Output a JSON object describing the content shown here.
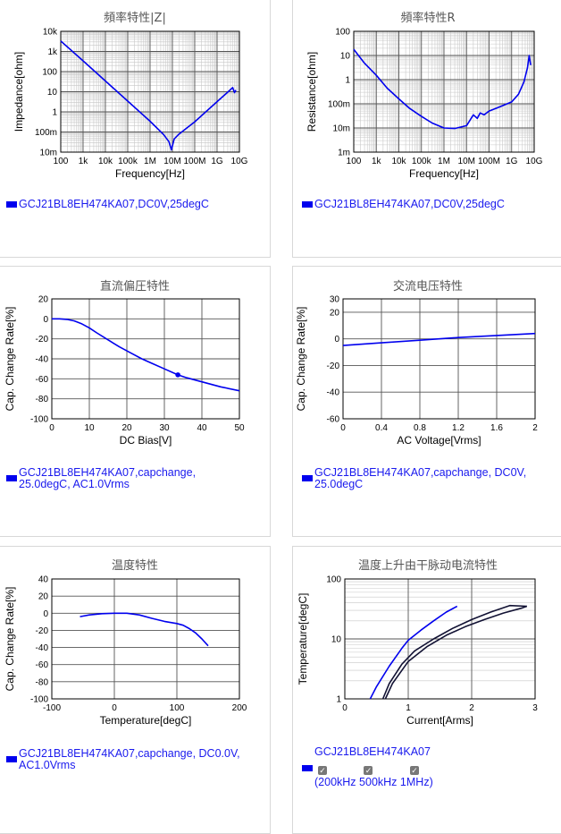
{
  "panels": [
    {
      "title": "頻率特性|Z|",
      "legend": [
        "GCJ21BL8EH474KA07,DC0V,25degC"
      ]
    },
    {
      "title": "頻率特性R",
      "legend": [
        "GCJ21BL8EH474KA07,DC0V,25degC"
      ]
    },
    {
      "title": "直流偏圧特性",
      "legend": [
        "GCJ21BL8EH474KA07,capchange,",
        "25.0degC, AC1.0Vrms"
      ]
    },
    {
      "title": "交流电压特性",
      "legend": [
        "GCJ21BL8EH474KA07,capchange, DC0V,",
        "25.0degC"
      ]
    },
    {
      "title": "温度特性",
      "legend": [
        "GCJ21BL8EH474KA07,capchange, DC0.0V,",
        "AC1.0Vrms"
      ]
    },
    {
      "title": "温度上升由干脉动电流特性",
      "legend": [
        "GCJ21BL8EH474KA07"
      ],
      "legend_options": [
        "200kHz",
        "500kHz",
        "1MHz"
      ],
      "legend_open": "(",
      "legend_close": ")"
    }
  ],
  "chart_data": [
    {
      "type": "line",
      "scale": "log-log",
      "title": "頻率特性|Z|",
      "xlabel": "Frequency[Hz]",
      "ylabel": "Impedance[ohm]",
      "xlim": [
        100,
        10000000000
      ],
      "ylim": [
        0.01,
        10000
      ],
      "xticks": [
        "100",
        "1k",
        "10k",
        "100k",
        "1M",
        "10M",
        "100M",
        "1G",
        "10G"
      ],
      "yticks": [
        "10m",
        "100m",
        "1",
        "10",
        "100",
        "1k",
        "10k"
      ],
      "grid": true,
      "series": [
        {
          "color": "#0000ee",
          "x": [
            100,
            1000,
            10000,
            100000,
            1000000,
            4000000,
            7000000,
            9000000,
            12000000,
            20000000,
            100000000,
            1000000000,
            3000000000,
            5000000000,
            6000000000,
            7000000000
          ],
          "y": [
            3300,
            340,
            34,
            3.4,
            0.34,
            0.075,
            0.033,
            0.013,
            0.045,
            0.08,
            0.32,
            3.2,
            9.5,
            16,
            9,
            12
          ]
        }
      ]
    },
    {
      "type": "line",
      "scale": "log-log",
      "title": "頻率特性R",
      "xlabel": "Frequency[Hz]",
      "ylabel": "Resistance[ohm]",
      "xlim": [
        100,
        10000000000
      ],
      "ylim": [
        0.001,
        100
      ],
      "xticks": [
        "100",
        "1k",
        "10k",
        "100k",
        "1M",
        "10M",
        "100M",
        "1G",
        "10G"
      ],
      "yticks": [
        "1m",
        "10m",
        "100m",
        "1",
        "10",
        "100"
      ],
      "grid": true,
      "series": [
        {
          "color": "#0000ee",
          "x": [
            100,
            300,
            1000,
            3000,
            10000,
            30000,
            100000,
            300000,
            1000000,
            3000000,
            10000000,
            20000000,
            30000000,
            40000000,
            60000000,
            100000000,
            300000000,
            1000000000,
            2000000000,
            3500000000,
            5000000000,
            6000000000,
            7000000000
          ],
          "y": [
            18,
            4.8,
            1.5,
            0.45,
            0.16,
            0.065,
            0.03,
            0.016,
            0.01,
            0.0095,
            0.0125,
            0.035,
            0.025,
            0.042,
            0.035,
            0.05,
            0.075,
            0.12,
            0.25,
            0.8,
            3,
            10,
            4
          ]
        }
      ]
    },
    {
      "type": "line",
      "title": "直流偏圧特性",
      "xlabel": "DC Bias[V]",
      "ylabel": "Cap. Change Rate[%]",
      "xlim": [
        0,
        50
      ],
      "ylim": [
        -100,
        20
      ],
      "xticks": [
        0,
        10,
        20,
        30,
        40,
        50
      ],
      "yticks": [
        20,
        0,
        -20,
        -40,
        -60,
        -80,
        -100
      ],
      "grid": true,
      "series": [
        {
          "color": "#0000ee",
          "x": [
            0,
            2,
            4,
            6,
            8,
            10,
            12,
            15,
            18,
            21,
            24,
            27,
            30,
            33.6,
            36,
            40,
            45,
            50
          ],
          "y": [
            0,
            0,
            -0.5,
            -2,
            -5,
            -9,
            -14,
            -21,
            -28,
            -34,
            -40,
            -45,
            -50,
            -56,
            -59,
            -63,
            -68,
            -72
          ]
        }
      ],
      "marker": {
        "x": 33.6,
        "y": -56
      }
    },
    {
      "type": "line",
      "title": "交流电压特性",
      "xlabel": "AC Voltage[Vrms]",
      "ylabel": "Cap. Change Rate[%]",
      "xlim": [
        0,
        2
      ],
      "ylim": [
        -60,
        30
      ],
      "xticks": [
        "0",
        "0.4",
        "0.8",
        "1.2",
        "1.6",
        "2"
      ],
      "yticks": [
        30,
        20,
        0,
        -20,
        -40,
        -60
      ],
      "grid": true,
      "series": [
        {
          "color": "#0000ee",
          "x": [
            0,
            0.4,
            0.8,
            1.2,
            1.6,
            2.0
          ],
          "y": [
            -5,
            -3,
            -1,
            1,
            2.5,
            4
          ]
        }
      ]
    },
    {
      "type": "line",
      "title": "温度特性",
      "xlabel": "Temperature[degC]",
      "ylabel": "Cap. Change Rate[%]",
      "xlim": [
        -100,
        200
      ],
      "ylim": [
        -100,
        40
      ],
      "xticks": [
        -100,
        0,
        100,
        200
      ],
      "yticks": [
        40,
        20,
        0,
        -20,
        -40,
        -60,
        -80,
        -100
      ],
      "grid": true,
      "series": [
        {
          "color": "#0000ee",
          "x": [
            -55,
            -40,
            -20,
            0,
            20,
            40,
            60,
            80,
            100,
            110,
            120,
            130,
            140,
            150
          ],
          "y": [
            -4,
            -2,
            -0.5,
            0,
            0,
            -2,
            -6,
            -9.5,
            -12,
            -14,
            -18,
            -23,
            -30,
            -38
          ]
        }
      ]
    },
    {
      "type": "line",
      "scale": "semilog-y",
      "title": "温度上升由干脉动电流特性",
      "xlabel": "Current[Arms]",
      "ylabel": "Temperature[degC]",
      "xlim": [
        0,
        3
      ],
      "ylim": [
        1,
        100
      ],
      "xticks": [
        0,
        1,
        2,
        3
      ],
      "yticks": [
        "1",
        "10",
        "100"
      ],
      "grid": true,
      "series": [
        {
          "color": "#0000ee",
          "x": [
            0.4,
            0.5,
            0.7,
            0.9,
            1.0,
            1.2,
            1.4,
            1.6,
            1.77
          ],
          "y": [
            1.0,
            1.6,
            3.5,
            7,
            9.5,
            14,
            20,
            28,
            35
          ]
        },
        {
          "color": "#111133",
          "x": [
            0.6,
            0.7,
            0.9,
            1.1,
            1.4,
            1.7,
            2.0,
            2.3,
            2.6,
            2.87
          ],
          "y": [
            1.0,
            1.8,
            3.8,
            6.3,
            10,
            15,
            21,
            28,
            36,
            35
          ]
        },
        {
          "color": "#111133",
          "x": [
            0.64,
            0.75,
            1.0,
            1.3,
            1.6,
            1.9,
            2.2,
            2.5,
            2.8,
            2.87
          ],
          "y": [
            1.0,
            1.8,
            4.2,
            7.5,
            11.5,
            16,
            21,
            27,
            33,
            35
          ]
        }
      ]
    }
  ]
}
